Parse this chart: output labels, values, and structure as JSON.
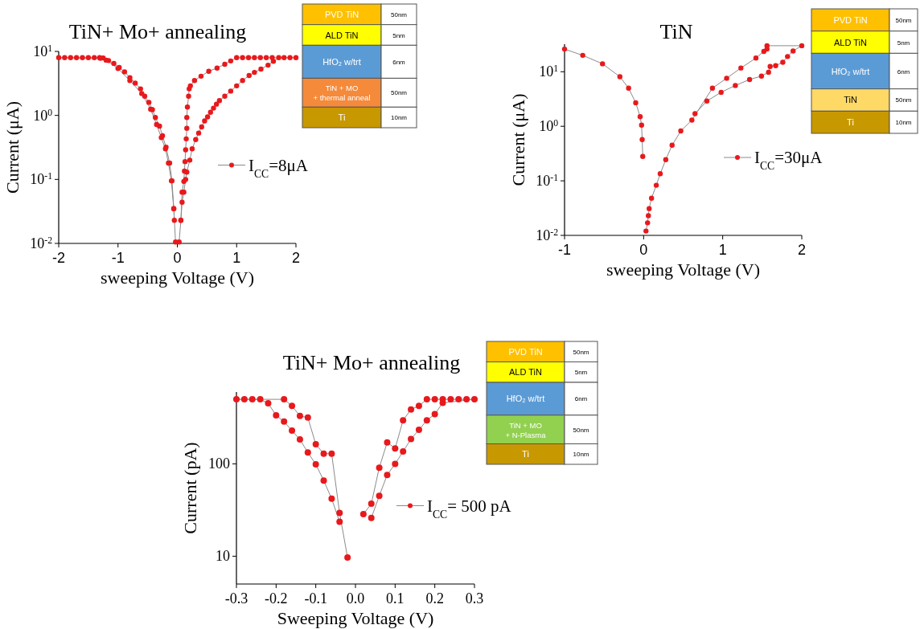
{
  "chart_data": [
    {
      "type": "line",
      "title": "TiN+ Mo+ annealing",
      "xlabel": "sweeping Voltage (V)",
      "ylabel": "Current (μA)",
      "log": true,
      "xlim": [
        -2,
        2
      ],
      "ylim": [
        0.01,
        10
      ],
      "xticks": [
        -2,
        -1,
        0,
        1,
        2
      ],
      "yticks": [
        {
          "value": 0.01,
          "label": "10$^{-2}$"
        },
        {
          "value": 0.1,
          "label": "10$^{-1}$"
        },
        {
          "value": 1,
          "label": "10$^{0}$"
        },
        {
          "value": 10,
          "label": "10$^{1}$"
        }
      ],
      "legend": "right",
      "marker": "circle",
      "line_style": "solid",
      "series": [
        {
          "name": "I$_{CC}$=8μA",
          "color": "#e8191c",
          "x": [
            0.03,
            0.06,
            0.08,
            0.11,
            0.14,
            0.16,
            0.21,
            0.25,
            0.31,
            0.36,
            0.41,
            0.46,
            0.51,
            0.56,
            0.61,
            0.66,
            0.71,
            0.8,
            0.9,
            1.0,
            1.1,
            1.21,
            1.3,
            1.41,
            1.53,
            1.62,
            1.71,
            1.8,
            1.9,
            2.0,
            1.6,
            1.5,
            1.4,
            1.3,
            1.2,
            1.1,
            1.0,
            0.9,
            0.8,
            0.67,
            0.53,
            0.4,
            0.29,
            0.22,
            0.2,
            0.19,
            0.17,
            0.16,
            0.16,
            0.15,
            0.14,
            0.13,
            0.12,
            0.11,
            0.08,
            0.06,
            0,
            -0.05,
            -0.06,
            -0.09,
            -0.13,
            -0.19,
            -0.25,
            -0.3,
            -0.37,
            -0.42,
            -0.48,
            -0.55,
            -0.62,
            -0.71,
            -0.8,
            -0.89,
            -0.98,
            -1.07,
            -1.16,
            -1.25,
            -1.31,
            -1.4,
            -1.5,
            -1.6,
            -1.7,
            -1.8,
            -1.9,
            -2.0,
            -1.3,
            -1.2,
            -1.0,
            -0.8,
            -0.6,
            -0.45,
            -0.35,
            -0.27,
            -0.2,
            -0.15,
            -0.1,
            -0.06,
            -0.03
          ],
          "values": [
            0.0105,
            0.023,
            0.044,
            0.063,
            0.1,
            0.13,
            0.2,
            0.3,
            0.42,
            0.53,
            0.66,
            0.82,
            0.95,
            1.12,
            1.3,
            1.5,
            1.7,
            2.0,
            2.4,
            2.9,
            3.5,
            4.2,
            4.7,
            5.3,
            6.1,
            7.0,
            8,
            8,
            8,
            8,
            8,
            8,
            8,
            8,
            8,
            8,
            8,
            7.1,
            6.3,
            5.5,
            4.9,
            4.1,
            3.5,
            2.9,
            2.6,
            2.0,
            1.35,
            0.93,
            0.63,
            0.43,
            0.29,
            0.19,
            0.135,
            0.093,
            0.063,
            0.023,
            null,
            0.023,
            0.035,
            0.095,
            0.18,
            0.32,
            0.48,
            0.68,
            0.93,
            1.23,
            1.6,
            2.0,
            2.6,
            3.2,
            3.9,
            4.8,
            5.6,
            6.5,
            7.2,
            7.9,
            8,
            8,
            8,
            8,
            8,
            8,
            8,
            8,
            7.8,
            7.3,
            5.4,
            3.5,
            2.2,
            1.25,
            0.72,
            0.45,
            0.3,
            0.18,
            0.095,
            0.035,
            0.0105
          ]
        }
      ]
    },
    {
      "type": "other",
      "y_categories": [
        "PVD TiN",
        "ALD TiN",
        "HfO₂ w/trt",
        "TiN + MO\n+ thermal anneal",
        "Ti"
      ],
      "y2_categories": [
        "50nm",
        "5nm",
        "6nm",
        "50nm",
        "10nm"
      ],
      "colors": [
        "#ffc000",
        "#ffff00",
        "#5b9bd5",
        "#f58a3a",
        "#c89800"
      ]
    },
    {
      "type": "line",
      "title": "TiN",
      "xlabel": "sweeping Voltage (V)",
      "ylabel": "Current (μA)",
      "log": true,
      "xlim": [
        -1,
        2
      ],
      "ylim": [
        0.01,
        32
      ],
      "xticks": [
        -1,
        0,
        1,
        2
      ],
      "yticks": [
        {
          "value": 0.01,
          "label": "10$^{-2}$"
        },
        {
          "value": 0.1,
          "label": "10$^{-1}$"
        },
        {
          "value": 1,
          "label": "10$^{0}$"
        },
        {
          "value": 10,
          "label": "10$^{1}$"
        }
      ],
      "legend": "right",
      "marker": "circle",
      "line_style": "solid",
      "series": [
        {
          "name": "I$_{CC}$=30μA",
          "color": "#e8191c",
          "x": [
            -1,
            -0.77,
            -0.52,
            -0.3,
            -0.19,
            -0.1,
            -0.044,
            -0.026,
            -0.018,
            -0.011,
            0,
            0.03,
            0.05,
            0.06,
            0.07,
            0.1,
            0.16,
            0.21,
            0.28,
            0.36,
            0.47,
            0.61,
            0.87,
            1.05,
            1.23,
            1.42,
            1.52,
            1.56,
            1.56,
            2.0,
            1.89,
            1.82,
            1.76,
            1.67,
            1.6,
            1.58,
            1.49,
            1.34,
            1.16,
            0.98,
            0.8,
            0.65
          ],
          "values": [
            26,
            20,
            14,
            8.1,
            5,
            2.7,
            1.5,
            1.05,
            0.57,
            0.28,
            null,
            0.012,
            0.017,
            0.023,
            0.031,
            0.048,
            0.083,
            0.135,
            0.245,
            0.45,
            0.82,
            1.3,
            5.0,
            7.6,
            11.7,
            17.8,
            23.6,
            26,
            30,
            30,
            24,
            19,
            14.9,
            12.9,
            12.5,
            9.8,
            8.3,
            7.2,
            5.6,
            4.2,
            2.9,
            1.7
          ]
        }
      ]
    },
    {
      "type": "other",
      "y_categories": [
        "PVD TiN",
        "ALD TiN",
        "HfO₂ w/trt",
        "TiN",
        "Ti"
      ],
      "y2_categories": [
        "50nm",
        "5nm",
        "6nm",
        "50nm",
        "10nm"
      ],
      "colors": [
        "#ffc000",
        "#ffff00",
        "#5b9bd5",
        "#ffd966",
        "#c89800"
      ]
    },
    {
      "type": "line",
      "title": "TiN+ Mo+ annealing",
      "xlabel": "Sweeping Voltage (V)",
      "ylabel": "Current (pA)",
      "log": true,
      "xlim": [
        -0.3,
        0.3
      ],
      "ylim": [
        5,
        600
      ],
      "xticks": [
        -0.3,
        -0.2,
        -0.1,
        {
          "value": 0,
          "label": "0.0"
        },
        0.1,
        0.2,
        0.3
      ],
      "yticks": [
        10,
        100
      ],
      "legend": "right",
      "marker": "circle",
      "line_style": "solid",
      "series": [
        {
          "name": "I$_{CC}$= 500 pA",
          "color": "#e8191c",
          "x": [
            -0.04,
            -0.06,
            -0.08,
            -0.1,
            -0.12,
            -0.14,
            -0.16,
            -0.18,
            -0.2,
            -0.22,
            -0.24,
            -0.26,
            -0.28,
            -0.3,
            -0.18,
            -0.16,
            -0.14,
            -0.12,
            -0.1,
            -0.08,
            -0.06,
            -0.04,
            -0.02,
            0,
            0.02,
            0.04,
            0.06,
            0.08,
            0.1,
            0.12,
            0.14,
            0.16,
            0.18,
            0.2,
            0.22,
            0.24,
            0.26,
            0.28,
            0.3,
            0.22,
            0.2,
            0.18,
            0.16,
            0.14,
            0.12,
            0.1,
            0.08,
            0.06,
            0.04
          ],
          "values": [
            23.6,
            42,
            66,
            99,
            133,
            184,
            229,
            287,
            335,
            453,
            500,
            500,
            500,
            500,
            500,
            424,
            331,
            317,
            163,
            129,
            129,
            29.4,
            9.7,
            null,
            28.5,
            37,
            91,
            171,
            147,
            296,
            389,
            424,
            500,
            500,
            500,
            500,
            500,
            500,
            500,
            458,
            346,
            296,
            234,
            186,
            136,
            100,
            76,
            45,
            26
          ]
        }
      ]
    },
    {
      "type": "other",
      "y_categories": [
        "PVD TiN",
        "ALD TiN",
        "HfO₂ w/trt",
        "TiN + MO\n+ N-Plasma",
        "Ti"
      ],
      "y2_categories": [
        "50nm",
        "5nm",
        "6nm",
        "50nm",
        "10nm"
      ],
      "colors": [
        "#ffc000",
        "#ffff00",
        "#5b9bd5",
        "#92d050",
        "#c89800"
      ]
    }
  ]
}
